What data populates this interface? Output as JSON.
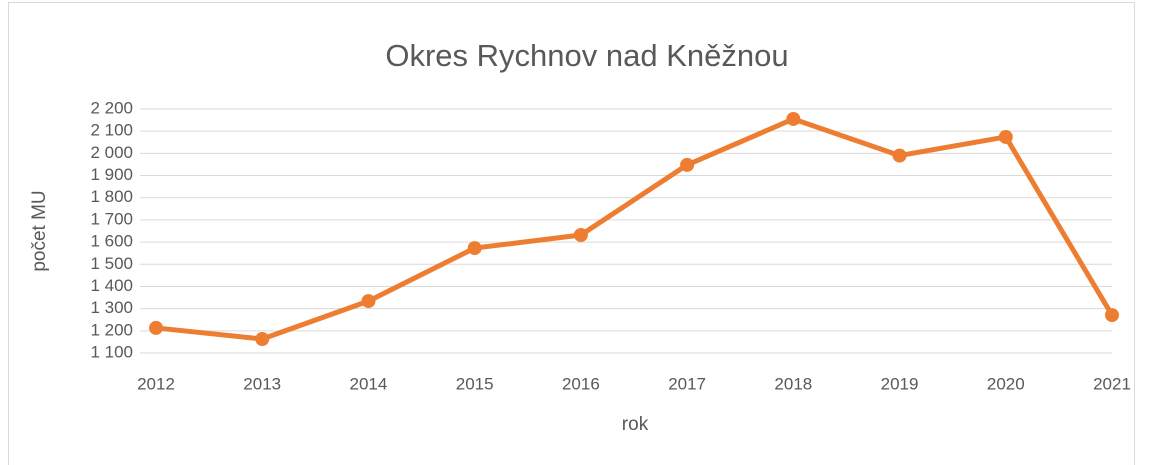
{
  "chart_data": {
    "type": "line",
    "title": "Okres Rychnov nad Kněžnou",
    "x_label": "rok",
    "y_label": "počet MU",
    "categories": [
      "2012",
      "2013",
      "2014",
      "2015",
      "2016",
      "2017",
      "2018",
      "2019",
      "2020",
      "2021"
    ],
    "series": [
      {
        "name": "Okres Rychnov nad Kněžnou",
        "color": "#ed7d31",
        "values": [
          1213,
          1163,
          1334,
          1573,
          1632,
          1948,
          2155,
          1990,
          2074,
          1271
        ]
      }
    ],
    "ylim": [
      1100,
      2200
    ],
    "yticks": [
      {
        "value": 1100,
        "label": "1 100"
      },
      {
        "value": 1200,
        "label": "1 200"
      },
      {
        "value": 1300,
        "label": "1 300"
      },
      {
        "value": 1400,
        "label": "1 400"
      },
      {
        "value": 1500,
        "label": "1 500"
      },
      {
        "value": 1600,
        "label": "1 600"
      },
      {
        "value": 1700,
        "label": "1 700"
      },
      {
        "value": 1800,
        "label": "1 800"
      },
      {
        "value": 1900,
        "label": "1 900"
      },
      {
        "value": 2000,
        "label": "2 000"
      },
      {
        "value": 2100,
        "label": "2 100"
      },
      {
        "value": 2200,
        "label": "2 200"
      }
    ],
    "grid": true
  }
}
